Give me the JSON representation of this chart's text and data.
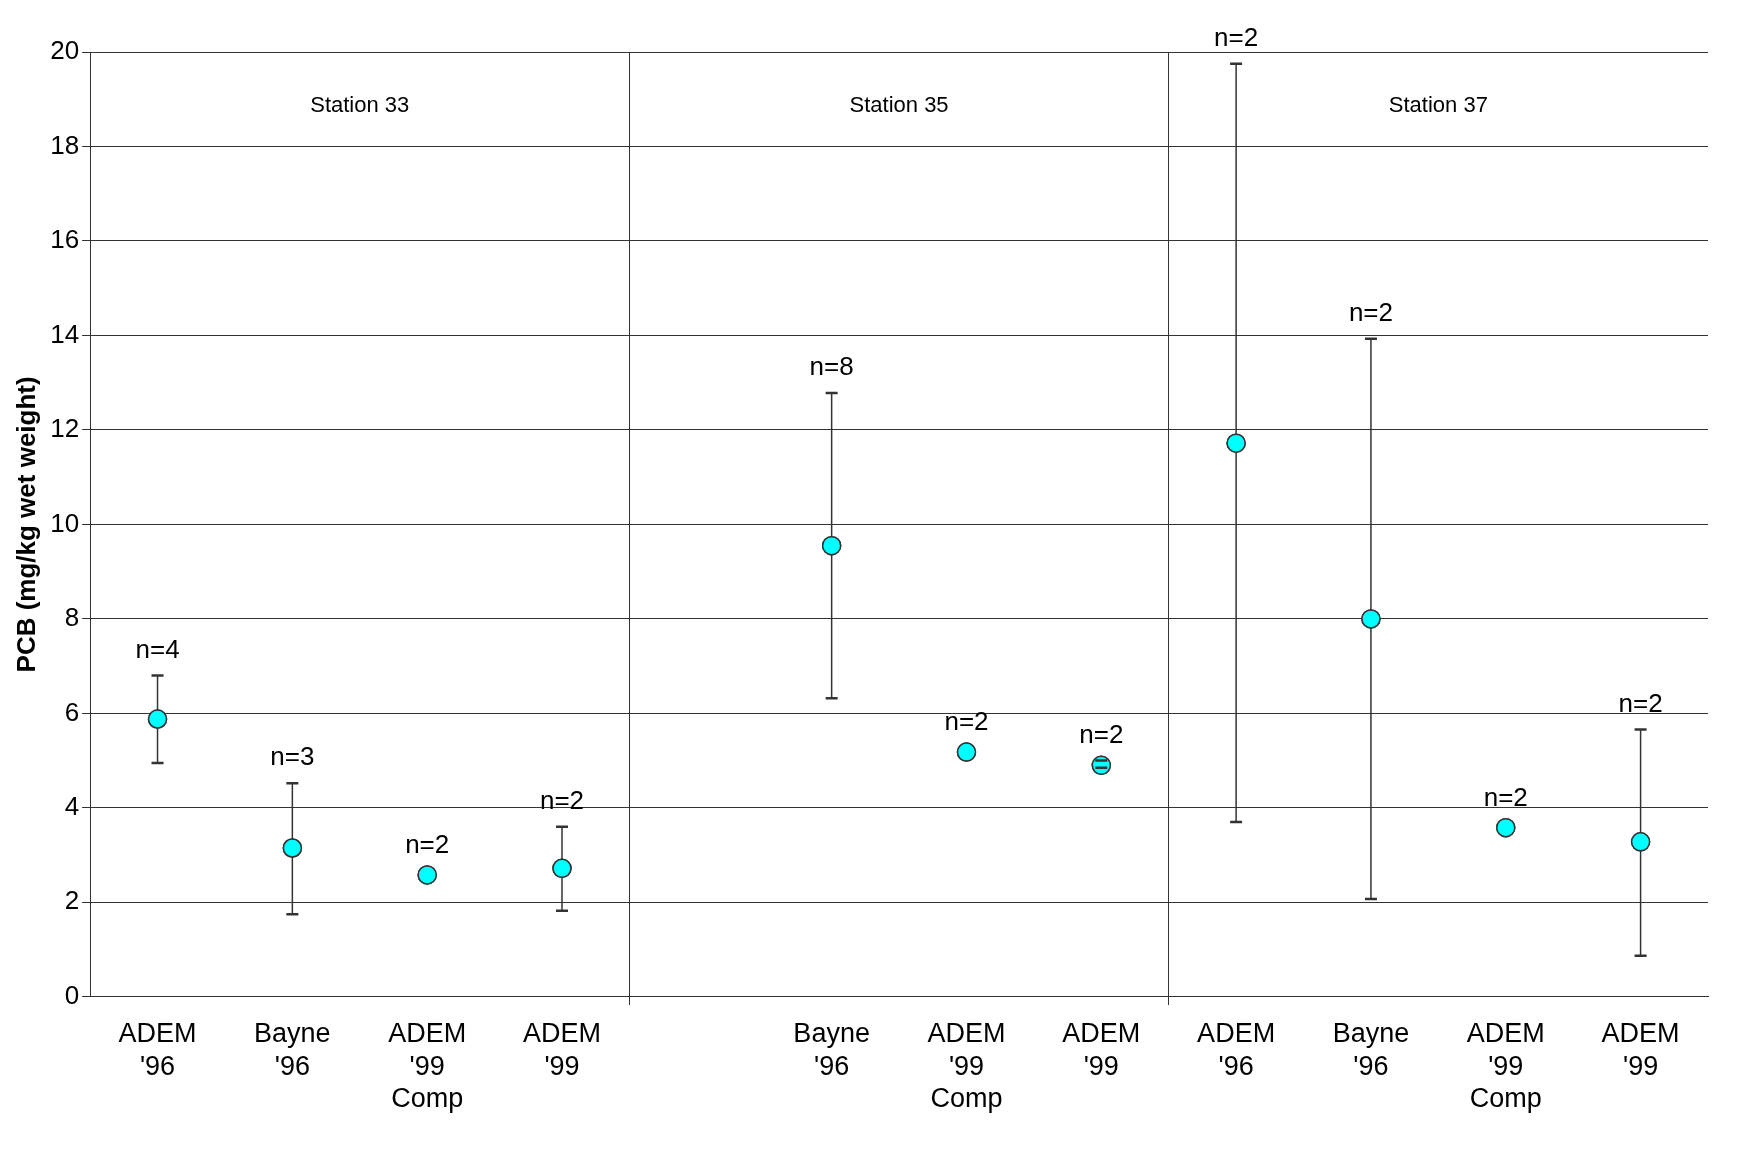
{
  "chart_data": {
    "type": "scatter",
    "ylabel": "PCB (mg/kg wet weight)",
    "categories": [
      "ADEM '96",
      "Bayne '96",
      "ADEM '99 Comp",
      "ADEM '99",
      null,
      "Bayne '96",
      "ADEM '99 Comp",
      "ADEM '99",
      "ADEM '96",
      "Bayne '96",
      "ADEM '99 Comp",
      "ADEM '99"
    ],
    "values": [
      5.88,
      3.15,
      2.58,
      2.72,
      null,
      9.55,
      5.18,
      4.9,
      11.72,
      8.0,
      3.58,
      3.28
    ],
    "errors": [
      [
        4.95,
        6.8
      ],
      [
        1.75,
        4.52
      ],
      null,
      [
        1.82,
        3.6
      ],
      null,
      [
        6.32,
        12.78
      ],
      null,
      [
        4.85,
        5.0
      ],
      [
        3.7,
        19.75
      ],
      [
        2.07,
        13.93
      ],
      null,
      [
        0.87,
        5.66
      ]
    ],
    "color": "#00ffff",
    "marker": "circle",
    "ylim": [
      0,
      20
    ],
    "yticks": [
      0,
      2,
      4,
      6,
      8,
      10,
      12,
      14,
      16,
      18,
      20
    ],
    "grid": "y",
    "legend": false,
    "annotations": [
      "Station 33",
      "Station 35",
      "Station 37",
      "n=4",
      "n=3",
      "n=2",
      "n=2",
      "n=8",
      "n=2",
      "n=2",
      "n=2",
      "n=2",
      "n=2",
      "n=2"
    ]
  }
}
